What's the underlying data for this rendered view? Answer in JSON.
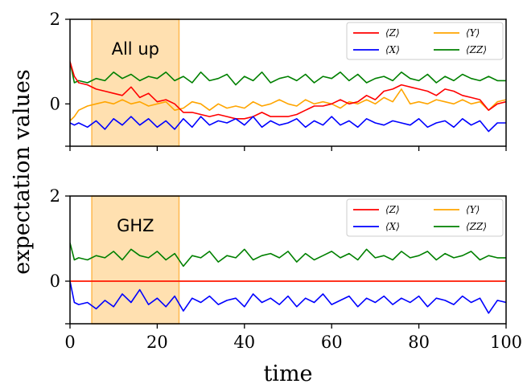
{
  "colors": {
    "Z": "#ff0000",
    "X": "#0000ff",
    "Y": "#ffa500",
    "ZZ": "#008000",
    "band": "#ffe0b0",
    "band_edge": "#ffb84d"
  },
  "figure": {
    "xlabel": "time",
    "ylabel": "expectation values"
  },
  "chart_data": [
    {
      "type": "line",
      "annotation": "All up",
      "xlim": [
        0,
        100
      ],
      "ylim": [
        -1,
        2
      ],
      "xticks": [
        0,
        20,
        40,
        60,
        80,
        100
      ],
      "yticks": [
        -1,
        0,
        2
      ],
      "ytick_labels": [
        "",
        "0",
        "2"
      ],
      "shaded_region": [
        5,
        25
      ],
      "legend_placement": "upper-right",
      "series": [
        {
          "name": "⟨Z⟩",
          "color_key": "Z",
          "x": [
            0,
            1,
            2,
            4,
            6,
            8,
            10,
            12,
            14,
            16,
            18,
            20,
            22,
            24,
            26,
            28,
            30,
            32,
            34,
            36,
            38,
            40,
            42,
            44,
            46,
            48,
            50,
            52,
            54,
            56,
            58,
            60,
            62,
            64,
            66,
            68,
            70,
            72,
            74,
            76,
            78,
            80,
            82,
            84,
            86,
            88,
            90,
            92,
            94,
            96,
            98,
            100
          ],
          "y": [
            1.0,
            0.65,
            0.5,
            0.45,
            0.35,
            0.3,
            0.25,
            0.2,
            0.4,
            0.15,
            0.25,
            0.05,
            0.1,
            0.0,
            -0.2,
            -0.2,
            -0.25,
            -0.3,
            -0.25,
            -0.3,
            -0.35,
            -0.35,
            -0.3,
            -0.2,
            -0.3,
            -0.3,
            -0.3,
            -0.25,
            -0.15,
            -0.05,
            -0.05,
            0.0,
            0.1,
            0.0,
            0.05,
            0.2,
            0.1,
            0.3,
            0.35,
            0.45,
            0.4,
            0.35,
            0.3,
            0.2,
            0.35,
            0.3,
            0.2,
            0.15,
            0.1,
            -0.15,
            0.0,
            0.05
          ]
        },
        {
          "name": "⟨X⟩",
          "color_key": "X",
          "x": [
            0,
            1,
            2,
            4,
            6,
            8,
            10,
            12,
            14,
            16,
            18,
            20,
            22,
            24,
            26,
            28,
            30,
            32,
            34,
            36,
            38,
            40,
            42,
            44,
            46,
            48,
            50,
            52,
            54,
            56,
            58,
            60,
            62,
            64,
            66,
            68,
            70,
            72,
            74,
            76,
            78,
            80,
            82,
            84,
            86,
            88,
            90,
            92,
            94,
            96,
            98,
            100
          ],
          "y": [
            -0.45,
            -0.5,
            -0.45,
            -0.55,
            -0.4,
            -0.6,
            -0.35,
            -0.5,
            -0.3,
            -0.5,
            -0.35,
            -0.55,
            -0.4,
            -0.6,
            -0.35,
            -0.55,
            -0.3,
            -0.5,
            -0.4,
            -0.45,
            -0.35,
            -0.5,
            -0.3,
            -0.55,
            -0.4,
            -0.5,
            -0.45,
            -0.35,
            -0.55,
            -0.4,
            -0.5,
            -0.3,
            -0.5,
            -0.4,
            -0.55,
            -0.35,
            -0.45,
            -0.5,
            -0.4,
            -0.45,
            -0.5,
            -0.35,
            -0.55,
            -0.45,
            -0.4,
            -0.55,
            -0.35,
            -0.5,
            -0.4,
            -0.65,
            -0.45,
            -0.45
          ]
        },
        {
          "name": "⟨Y⟩",
          "color_key": "Y",
          "x": [
            0,
            1,
            2,
            4,
            6,
            8,
            10,
            12,
            14,
            16,
            18,
            20,
            22,
            24,
            26,
            28,
            30,
            32,
            34,
            36,
            38,
            40,
            42,
            44,
            46,
            48,
            50,
            52,
            54,
            56,
            58,
            60,
            62,
            64,
            66,
            68,
            70,
            72,
            74,
            76,
            78,
            80,
            82,
            84,
            86,
            88,
            90,
            92,
            94,
            96,
            98,
            100
          ],
          "y": [
            -0.4,
            -0.3,
            -0.15,
            -0.05,
            0.0,
            0.05,
            0.0,
            0.1,
            0.0,
            0.05,
            -0.05,
            0.0,
            0.05,
            -0.15,
            -0.1,
            0.05,
            0.0,
            -0.15,
            0.0,
            -0.1,
            -0.05,
            -0.1,
            0.05,
            -0.05,
            0.0,
            0.1,
            0.0,
            -0.05,
            0.1,
            0.0,
            0.05,
            0.0,
            -0.1,
            0.05,
            0.0,
            0.1,
            0.0,
            0.15,
            0.05,
            0.35,
            0.0,
            0.05,
            0.0,
            0.1,
            0.05,
            0.0,
            0.1,
            0.0,
            0.05,
            -0.15,
            0.05,
            0.1
          ]
        },
        {
          "name": "⟨ZZ⟩",
          "color_key": "ZZ",
          "x": [
            0,
            1,
            2,
            4,
            6,
            8,
            10,
            12,
            14,
            16,
            18,
            20,
            22,
            24,
            26,
            28,
            30,
            32,
            34,
            36,
            38,
            40,
            42,
            44,
            46,
            48,
            50,
            52,
            54,
            56,
            58,
            60,
            62,
            64,
            66,
            68,
            70,
            72,
            74,
            76,
            78,
            80,
            82,
            84,
            86,
            88,
            90,
            92,
            94,
            96,
            98,
            100
          ],
          "y": [
            1.0,
            0.5,
            0.55,
            0.5,
            0.6,
            0.55,
            0.75,
            0.6,
            0.7,
            0.55,
            0.65,
            0.6,
            0.75,
            0.55,
            0.65,
            0.5,
            0.75,
            0.55,
            0.6,
            0.7,
            0.45,
            0.65,
            0.55,
            0.75,
            0.5,
            0.6,
            0.65,
            0.55,
            0.7,
            0.5,
            0.65,
            0.6,
            0.75,
            0.55,
            0.7,
            0.5,
            0.6,
            0.65,
            0.55,
            0.75,
            0.6,
            0.55,
            0.7,
            0.5,
            0.65,
            0.55,
            0.7,
            0.6,
            0.55,
            0.65,
            0.55,
            0.55
          ]
        }
      ]
    },
    {
      "type": "line",
      "annotation": "GHZ",
      "xlim": [
        0,
        100
      ],
      "ylim": [
        -1,
        2
      ],
      "xticks": [
        0,
        20,
        40,
        60,
        80,
        100
      ],
      "xtick_labels": [
        "0",
        "20",
        "40",
        "60",
        "80",
        "100"
      ],
      "yticks": [
        -1,
        0,
        2
      ],
      "ytick_labels": [
        "",
        "0",
        "2"
      ],
      "shaded_region": [
        5,
        25
      ],
      "legend_placement": "upper-right",
      "series": [
        {
          "name": "⟨Z⟩",
          "color_key": "Z",
          "x": [
            0,
            100
          ],
          "y": [
            0.0,
            0.0
          ]
        },
        {
          "name": "⟨X⟩",
          "color_key": "X",
          "x": [
            0,
            1,
            2,
            4,
            6,
            8,
            10,
            12,
            14,
            16,
            18,
            20,
            22,
            24,
            26,
            28,
            30,
            32,
            34,
            36,
            38,
            40,
            42,
            44,
            46,
            48,
            50,
            52,
            54,
            56,
            58,
            60,
            62,
            64,
            66,
            68,
            70,
            72,
            74,
            76,
            78,
            80,
            82,
            84,
            86,
            88,
            90,
            92,
            94,
            96,
            98,
            100
          ],
          "y": [
            0.0,
            -0.5,
            -0.55,
            -0.5,
            -0.65,
            -0.45,
            -0.6,
            -0.3,
            -0.5,
            -0.2,
            -0.55,
            -0.4,
            -0.6,
            -0.35,
            -0.7,
            -0.4,
            -0.5,
            -0.35,
            -0.55,
            -0.45,
            -0.4,
            -0.6,
            -0.3,
            -0.5,
            -0.4,
            -0.55,
            -0.35,
            -0.6,
            -0.4,
            -0.5,
            -0.3,
            -0.55,
            -0.45,
            -0.35,
            -0.6,
            -0.4,
            -0.5,
            -0.35,
            -0.55,
            -0.4,
            -0.5,
            -0.35,
            -0.6,
            -0.4,
            -0.45,
            -0.55,
            -0.35,
            -0.5,
            -0.4,
            -0.75,
            -0.45,
            -0.5
          ]
        },
        {
          "name": "⟨Y⟩",
          "color_key": "Y",
          "x": [
            0,
            100
          ],
          "y": [
            0.0,
            0.0
          ]
        },
        {
          "name": "⟨ZZ⟩",
          "color_key": "ZZ",
          "x": [
            0,
            1,
            2,
            4,
            6,
            8,
            10,
            12,
            14,
            16,
            18,
            20,
            22,
            24,
            26,
            28,
            30,
            32,
            34,
            36,
            38,
            40,
            42,
            44,
            46,
            48,
            50,
            52,
            54,
            56,
            58,
            60,
            62,
            64,
            66,
            68,
            70,
            72,
            74,
            76,
            78,
            80,
            82,
            84,
            86,
            88,
            90,
            92,
            94,
            96,
            98,
            100
          ],
          "y": [
            0.9,
            0.5,
            0.55,
            0.5,
            0.6,
            0.55,
            0.7,
            0.5,
            0.75,
            0.6,
            0.55,
            0.7,
            0.5,
            0.65,
            0.35,
            0.6,
            0.55,
            0.7,
            0.45,
            0.6,
            0.55,
            0.75,
            0.5,
            0.6,
            0.65,
            0.55,
            0.7,
            0.45,
            0.65,
            0.5,
            0.6,
            0.7,
            0.55,
            0.65,
            0.5,
            0.75,
            0.55,
            0.6,
            0.5,
            0.7,
            0.55,
            0.6,
            0.7,
            0.5,
            0.65,
            0.55,
            0.6,
            0.7,
            0.5,
            0.6,
            0.55,
            0.55
          ]
        }
      ]
    }
  ]
}
